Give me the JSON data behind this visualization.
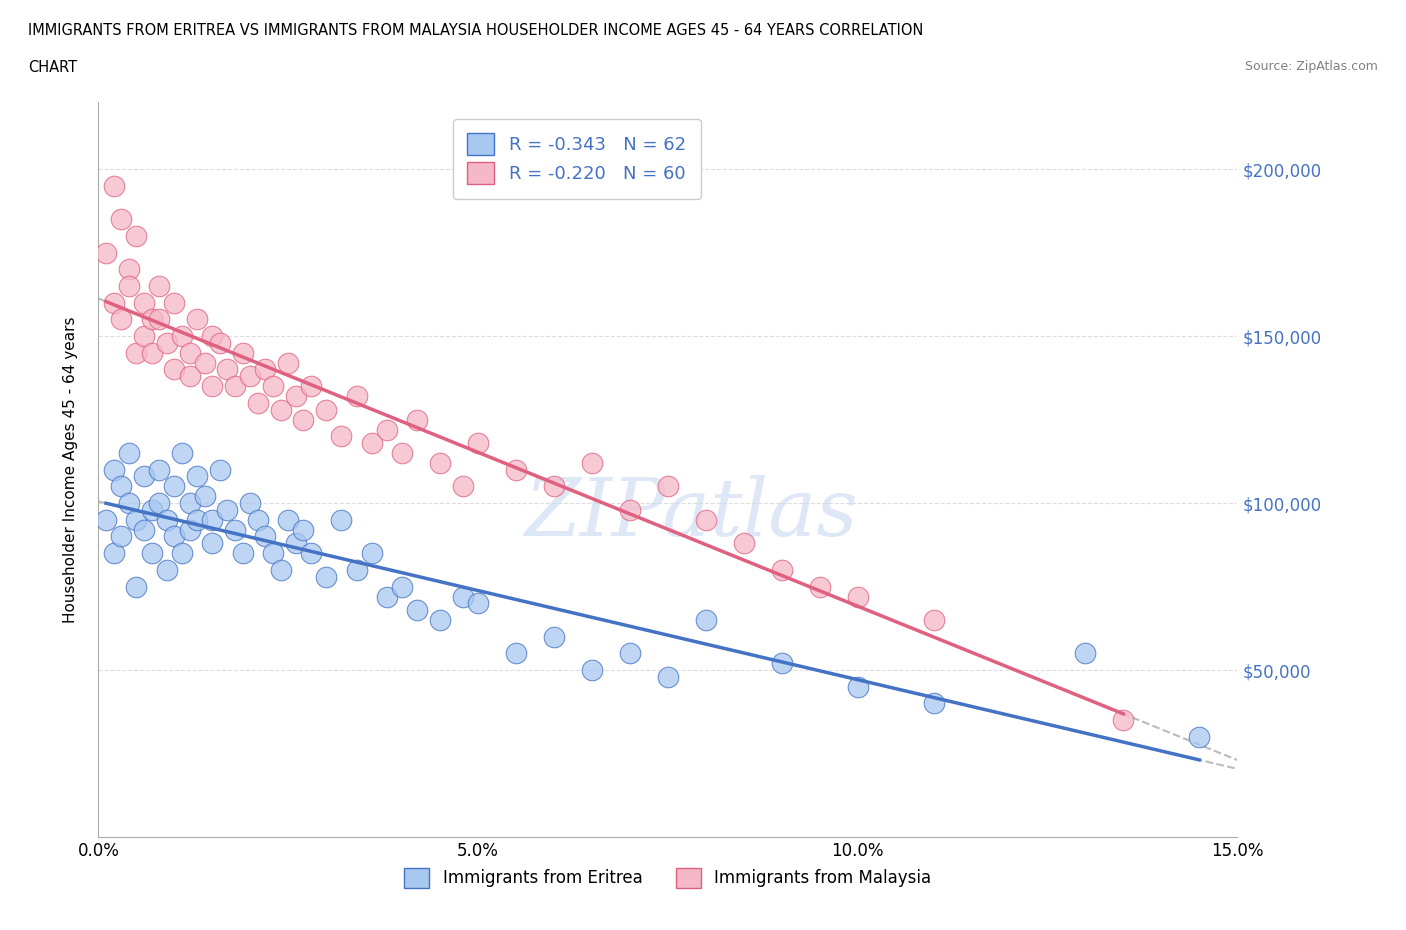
{
  "title_line1": "IMMIGRANTS FROM ERITREA VS IMMIGRANTS FROM MALAYSIA HOUSEHOLDER INCOME AGES 45 - 64 YEARS CORRELATION",
  "title_line2": "CHART",
  "source": "Source: ZipAtlas.com",
  "ylabel": "Householder Income Ages 45 - 64 years",
  "xlim": [
    0.0,
    0.15
  ],
  "ylim": [
    0,
    220000
  ],
  "yticks": [
    0,
    50000,
    100000,
    150000,
    200000
  ],
  "ytick_labels": [
    "",
    "$50,000",
    "$100,000",
    "$150,000",
    "$200,000"
  ],
  "xticks": [
    0.0,
    0.05,
    0.1,
    0.15
  ],
  "xtick_labels": [
    "0.0%",
    "5.0%",
    "10.0%",
    "15.0%"
  ],
  "r_eritrea": -0.343,
  "n_eritrea": 62,
  "r_malaysia": -0.22,
  "n_malaysia": 60,
  "color_eritrea": "#a8c8f0",
  "color_malaysia": "#f5b8c8",
  "line_color_eritrea": "#4472C4",
  "line_color_malaysia": "#E06080",
  "watermark": "ZIPatlas",
  "background_color": "#ffffff",
  "grid_color": "#dddddd",
  "blue_text": "#4472C4",
  "eritrea_x": [
    0.001,
    0.002,
    0.002,
    0.003,
    0.003,
    0.004,
    0.004,
    0.005,
    0.005,
    0.006,
    0.006,
    0.007,
    0.007,
    0.008,
    0.008,
    0.009,
    0.009,
    0.01,
    0.01,
    0.011,
    0.011,
    0.012,
    0.012,
    0.013,
    0.013,
    0.014,
    0.015,
    0.015,
    0.016,
    0.017,
    0.018,
    0.019,
    0.02,
    0.021,
    0.022,
    0.023,
    0.024,
    0.025,
    0.026,
    0.027,
    0.028,
    0.03,
    0.032,
    0.034,
    0.036,
    0.038,
    0.04,
    0.042,
    0.045,
    0.048,
    0.05,
    0.055,
    0.06,
    0.065,
    0.07,
    0.075,
    0.08,
    0.09,
    0.1,
    0.11,
    0.13,
    0.145
  ],
  "eritrea_y": [
    95000,
    110000,
    85000,
    105000,
    90000,
    100000,
    115000,
    95000,
    75000,
    108000,
    92000,
    98000,
    85000,
    110000,
    100000,
    95000,
    80000,
    105000,
    90000,
    115000,
    85000,
    100000,
    92000,
    108000,
    95000,
    102000,
    88000,
    95000,
    110000,
    98000,
    92000,
    85000,
    100000,
    95000,
    90000,
    85000,
    80000,
    95000,
    88000,
    92000,
    85000,
    78000,
    95000,
    80000,
    85000,
    72000,
    75000,
    68000,
    65000,
    72000,
    70000,
    55000,
    60000,
    50000,
    55000,
    48000,
    65000,
    52000,
    45000,
    40000,
    55000,
    30000
  ],
  "malaysia_x": [
    0.001,
    0.002,
    0.002,
    0.003,
    0.003,
    0.004,
    0.004,
    0.005,
    0.005,
    0.006,
    0.006,
    0.007,
    0.007,
    0.008,
    0.008,
    0.009,
    0.01,
    0.01,
    0.011,
    0.012,
    0.012,
    0.013,
    0.014,
    0.015,
    0.015,
    0.016,
    0.017,
    0.018,
    0.019,
    0.02,
    0.021,
    0.022,
    0.023,
    0.024,
    0.025,
    0.026,
    0.027,
    0.028,
    0.03,
    0.032,
    0.034,
    0.036,
    0.038,
    0.04,
    0.042,
    0.045,
    0.048,
    0.05,
    0.055,
    0.06,
    0.065,
    0.07,
    0.075,
    0.08,
    0.085,
    0.09,
    0.095,
    0.1,
    0.11,
    0.135
  ],
  "malaysia_y": [
    175000,
    195000,
    160000,
    185000,
    155000,
    170000,
    165000,
    145000,
    180000,
    160000,
    150000,
    155000,
    145000,
    165000,
    155000,
    148000,
    140000,
    160000,
    150000,
    145000,
    138000,
    155000,
    142000,
    150000,
    135000,
    148000,
    140000,
    135000,
    145000,
    138000,
    130000,
    140000,
    135000,
    128000,
    142000,
    132000,
    125000,
    135000,
    128000,
    120000,
    132000,
    118000,
    122000,
    115000,
    125000,
    112000,
    105000,
    118000,
    110000,
    105000,
    112000,
    98000,
    105000,
    95000,
    88000,
    80000,
    75000,
    72000,
    65000,
    35000
  ]
}
